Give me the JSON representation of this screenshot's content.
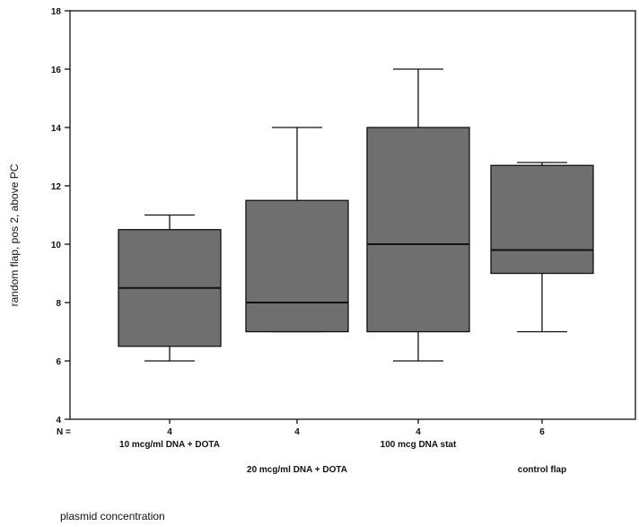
{
  "chart_data": {
    "type": "boxplot",
    "title": "",
    "xlabel": "plasmid concentration",
    "ylabel": "random flap, pos 2, above PC",
    "ylim": [
      4,
      18
    ],
    "yticks": [
      4,
      6,
      8,
      10,
      12,
      14,
      16,
      18
    ],
    "grid": false,
    "n_axis_prefix": "N =",
    "box_color": "#6f6f6f",
    "categories": [
      "10 mcg/ml DNA + DOTA",
      "20 mcg/ml DNA + DOTA",
      "100 mcg DNA stat",
      "control flap"
    ],
    "n": [
      "4",
      "4",
      "4",
      "6"
    ],
    "boxes": [
      {
        "whisker_low": 6.0,
        "q1": 6.5,
        "median": 8.5,
        "q3": 10.5,
        "whisker_high": 11.0
      },
      {
        "whisker_low": 7.0,
        "q1": 7.0,
        "median": 8.0,
        "q3": 11.5,
        "whisker_high": 14.0
      },
      {
        "whisker_low": 6.0,
        "q1": 7.0,
        "median": 10.0,
        "q3": 14.0,
        "whisker_high": 16.0
      },
      {
        "whisker_low": 7.0,
        "q1": 9.0,
        "median": 9.8,
        "q3": 12.7,
        "whisker_high": 12.8
      }
    ]
  }
}
